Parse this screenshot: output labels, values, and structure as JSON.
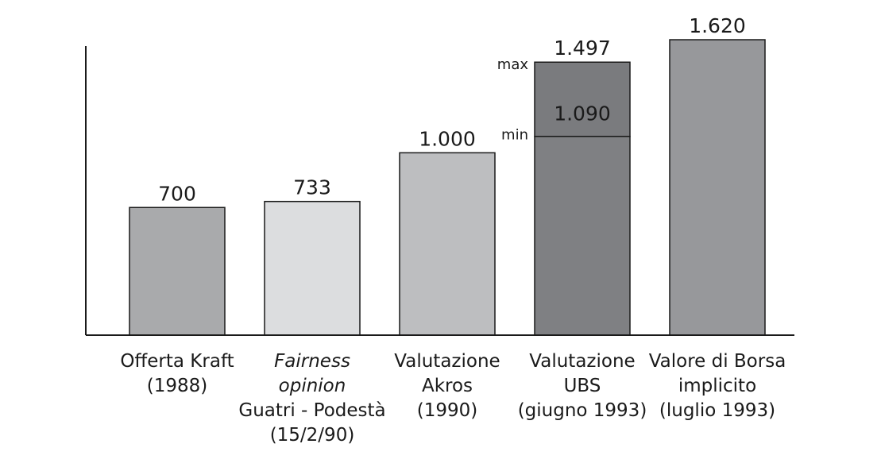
{
  "chart_data": {
    "type": "bar",
    "categories": [
      [
        "Offerta Kraft",
        "(1988)"
      ],
      [
        "Fairness",
        "opinion",
        "Guatri - Podestà",
        "(15/2/90)"
      ],
      [
        "Valutazione",
        "Akros",
        "(1990)"
      ],
      [
        "Valutazione",
        "UBS",
        "(giugno 1993)"
      ],
      [
        "Valore di Borsa",
        "implicito",
        "(luglio 1993)"
      ]
    ],
    "italic_lines": [
      [],
      [
        0,
        1
      ],
      [],
      [],
      []
    ],
    "values": [
      700,
      733,
      1000,
      1497,
      1620
    ],
    "value_labels": [
      "700",
      "733",
      "1.000",
      "1.497",
      "1.620"
    ],
    "range_bar": {
      "index": 3,
      "min": 1090,
      "max": 1497,
      "min_label": "min",
      "max_label": "max",
      "min_value_label": "1.090"
    },
    "colors": [
      "#a9aaac",
      "#dcdddf",
      "#bdbec0",
      "#7f8083",
      "#97989b"
    ],
    "range_max_color": "#7a7b7e",
    "ylim": [
      0,
      1620
    ],
    "axes": "left-and-bottom-lines-only",
    "grid": false,
    "legend": "none",
    "title": "",
    "xlabel": "",
    "ylabel": ""
  }
}
